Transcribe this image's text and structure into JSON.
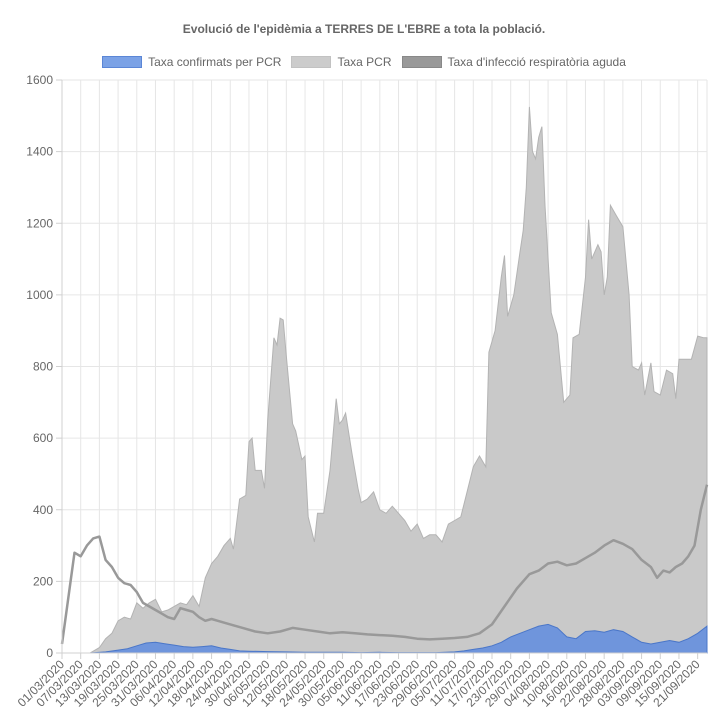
{
  "chart_data": {
    "type": "area",
    "title": "Evolució de l'epidèmia a TERRES DE L'EBRE a tota la població.",
    "ylim": [
      0,
      1600
    ],
    "yticks": [
      0,
      200,
      400,
      600,
      800,
      1000,
      1200,
      1400,
      1600
    ],
    "x_start": "01/03/2020",
    "x_end": "24/09/2020",
    "x_tick_labels": [
      "01/03/2020",
      "07/03/2020",
      "13/03/2020",
      "19/03/2020",
      "25/03/2020",
      "31/03/2020",
      "06/04/2020",
      "12/04/2020",
      "18/04/2020",
      "24/04/2020",
      "30/04/2020",
      "06/05/2020",
      "12/05/2020",
      "18/05/2020",
      "24/05/2020",
      "30/05/2020",
      "05/06/2020",
      "11/06/2020",
      "17/06/2020",
      "23/06/2020",
      "29/06/2020",
      "05/07/2020",
      "11/07/2020",
      "17/07/2020",
      "23/07/2020",
      "29/07/2020",
      "04/08/2020",
      "10/08/2020",
      "16/08/2020",
      "22/08/2020",
      "28/08/2020",
      "03/09/2020",
      "09/09/2020",
      "15/09/2020",
      "21/09/2020"
    ],
    "grid": true,
    "legend_position": "top",
    "series": [
      {
        "name": "Taxa confirmats per PCR",
        "color": "#5b86d6",
        "points": [
          [
            "01/03/2020",
            0
          ],
          [
            "10/03/2020",
            0
          ],
          [
            "15/03/2020",
            3
          ],
          [
            "19/03/2020",
            8
          ],
          [
            "22/03/2020",
            12
          ],
          [
            "25/03/2020",
            20
          ],
          [
            "28/03/2020",
            28
          ],
          [
            "31/03/2020",
            30
          ],
          [
            "03/04/2020",
            26
          ],
          [
            "06/04/2020",
            22
          ],
          [
            "09/04/2020",
            18
          ],
          [
            "12/04/2020",
            16
          ],
          [
            "15/04/2020",
            18
          ],
          [
            "18/04/2020",
            20
          ],
          [
            "21/04/2020",
            14
          ],
          [
            "24/04/2020",
            10
          ],
          [
            "27/04/2020",
            6
          ],
          [
            "30/04/2020",
            5
          ],
          [
            "06/05/2020",
            4
          ],
          [
            "12/05/2020",
            3
          ],
          [
            "18/05/2020",
            2
          ],
          [
            "24/05/2020",
            2
          ],
          [
            "30/05/2020",
            2
          ],
          [
            "05/06/2020",
            1
          ],
          [
            "11/06/2020",
            2
          ],
          [
            "17/06/2020",
            1
          ],
          [
            "23/06/2020",
            1
          ],
          [
            "29/06/2020",
            1
          ],
          [
            "02/07/2020",
            2
          ],
          [
            "05/07/2020",
            3
          ],
          [
            "08/07/2020",
            6
          ],
          [
            "11/07/2020",
            10
          ],
          [
            "14/07/2020",
            14
          ],
          [
            "17/07/2020",
            20
          ],
          [
            "20/07/2020",
            30
          ],
          [
            "23/07/2020",
            45
          ],
          [
            "26/07/2020",
            55
          ],
          [
            "29/07/2020",
            65
          ],
          [
            "01/08/2020",
            75
          ],
          [
            "04/08/2020",
            80
          ],
          [
            "07/08/2020",
            70
          ],
          [
            "10/08/2020",
            45
          ],
          [
            "13/08/2020",
            40
          ],
          [
            "16/08/2020",
            60
          ],
          [
            "19/08/2020",
            62
          ],
          [
            "22/08/2020",
            58
          ],
          [
            "25/08/2020",
            65
          ],
          [
            "28/08/2020",
            60
          ],
          [
            "31/08/2020",
            45
          ],
          [
            "03/09/2020",
            30
          ],
          [
            "06/09/2020",
            25
          ],
          [
            "09/09/2020",
            30
          ],
          [
            "12/09/2020",
            35
          ],
          [
            "15/09/2020",
            30
          ],
          [
            "18/09/2020",
            40
          ],
          [
            "21/09/2020",
            55
          ],
          [
            "24/09/2020",
            75
          ]
        ]
      },
      {
        "name": "Taxa PCR",
        "color": "#c9c9c9",
        "points": [
          [
            "01/03/2020",
            0
          ],
          [
            "10/03/2020",
            0
          ],
          [
            "13/03/2020",
            15
          ],
          [
            "15/03/2020",
            40
          ],
          [
            "17/03/2020",
            55
          ],
          [
            "19/03/2020",
            90
          ],
          [
            "21/03/2020",
            100
          ],
          [
            "23/03/2020",
            95
          ],
          [
            "25/03/2020",
            140
          ],
          [
            "27/03/2020",
            125
          ],
          [
            "29/03/2020",
            140
          ],
          [
            "31/03/2020",
            150
          ],
          [
            "02/04/2020",
            115
          ],
          [
            "04/04/2020",
            120
          ],
          [
            "06/04/2020",
            130
          ],
          [
            "08/04/2020",
            140
          ],
          [
            "10/04/2020",
            135
          ],
          [
            "12/04/2020",
            160
          ],
          [
            "14/04/2020",
            130
          ],
          [
            "16/04/2020",
            210
          ],
          [
            "18/04/2020",
            250
          ],
          [
            "20/04/2020",
            270
          ],
          [
            "22/04/2020",
            300
          ],
          [
            "24/04/2020",
            320
          ],
          [
            "25/04/2020",
            290
          ],
          [
            "27/04/2020",
            430
          ],
          [
            "29/04/2020",
            440
          ],
          [
            "30/04/2020",
            590
          ],
          [
            "01/05/2020",
            600
          ],
          [
            "02/05/2020",
            510
          ],
          [
            "04/05/2020",
            510
          ],
          [
            "05/05/2020",
            460
          ],
          [
            "06/05/2020",
            650
          ],
          [
            "08/05/2020",
            880
          ],
          [
            "09/05/2020",
            860
          ],
          [
            "10/05/2020",
            935
          ],
          [
            "11/05/2020",
            930
          ],
          [
            "12/05/2020",
            830
          ],
          [
            "14/05/2020",
            640
          ],
          [
            "15/05/2020",
            620
          ],
          [
            "17/05/2020",
            540
          ],
          [
            "18/05/2020",
            550
          ],
          [
            "19/05/2020",
            380
          ],
          [
            "21/05/2020",
            310
          ],
          [
            "22/05/2020",
            390
          ],
          [
            "24/05/2020",
            390
          ],
          [
            "26/05/2020",
            510
          ],
          [
            "27/05/2020",
            610
          ],
          [
            "28/05/2020",
            710
          ],
          [
            "29/05/2020",
            640
          ],
          [
            "30/05/2020",
            650
          ],
          [
            "31/05/2020",
            670
          ],
          [
            "02/06/2020",
            560
          ],
          [
            "04/06/2020",
            460
          ],
          [
            "05/06/2020",
            420
          ],
          [
            "07/06/2020",
            430
          ],
          [
            "09/06/2020",
            450
          ],
          [
            "11/06/2020",
            400
          ],
          [
            "13/06/2020",
            390
          ],
          [
            "15/06/2020",
            410
          ],
          [
            "17/06/2020",
            390
          ],
          [
            "19/06/2020",
            370
          ],
          [
            "21/06/2020",
            340
          ],
          [
            "23/06/2020",
            360
          ],
          [
            "25/06/2020",
            320
          ],
          [
            "27/06/2020",
            330
          ],
          [
            "29/06/2020",
            330
          ],
          [
            "01/07/2020",
            310
          ],
          [
            "03/07/2020",
            360
          ],
          [
            "05/07/2020",
            370
          ],
          [
            "07/07/2020",
            380
          ],
          [
            "09/07/2020",
            450
          ],
          [
            "11/07/2020",
            520
          ],
          [
            "13/07/2020",
            550
          ],
          [
            "15/07/2020",
            520
          ],
          [
            "16/07/2020",
            840
          ],
          [
            "18/07/2020",
            900
          ],
          [
            "20/07/2020",
            1050
          ],
          [
            "21/07/2020",
            1110
          ],
          [
            "22/07/2020",
            940
          ],
          [
            "24/07/2020",
            1000
          ],
          [
            "26/07/2020",
            1120
          ],
          [
            "27/07/2020",
            1180
          ],
          [
            "28/07/2020",
            1300
          ],
          [
            "29/07/2020",
            1525
          ],
          [
            "30/07/2020",
            1400
          ],
          [
            "31/07/2020",
            1380
          ],
          [
            "01/08/2020",
            1440
          ],
          [
            "02/08/2020",
            1470
          ],
          [
            "03/08/2020",
            1250
          ],
          [
            "05/08/2020",
            950
          ],
          [
            "07/08/2020",
            890
          ],
          [
            "09/08/2020",
            700
          ],
          [
            "11/08/2020",
            720
          ],
          [
            "12/08/2020",
            880
          ],
          [
            "14/08/2020",
            890
          ],
          [
            "16/08/2020",
            1050
          ],
          [
            "17/08/2020",
            1210
          ],
          [
            "18/08/2020",
            1100
          ],
          [
            "19/08/2020",
            1120
          ],
          [
            "20/08/2020",
            1140
          ],
          [
            "21/08/2020",
            1120
          ],
          [
            "22/08/2020",
            1000
          ],
          [
            "23/08/2020",
            1050
          ],
          [
            "24/08/2020",
            1250
          ],
          [
            "26/08/2020",
            1220
          ],
          [
            "28/08/2020",
            1190
          ],
          [
            "30/08/2020",
            1000
          ],
          [
            "31/08/2020",
            800
          ],
          [
            "02/09/2020",
            790
          ],
          [
            "03/09/2020",
            810
          ],
          [
            "04/09/2020",
            720
          ],
          [
            "06/09/2020",
            810
          ],
          [
            "07/09/2020",
            730
          ],
          [
            "09/09/2020",
            720
          ],
          [
            "11/09/2020",
            790
          ],
          [
            "13/09/2020",
            780
          ],
          [
            "14/09/2020",
            710
          ],
          [
            "15/09/2020",
            820
          ],
          [
            "17/09/2020",
            820
          ],
          [
            "19/09/2020",
            820
          ],
          [
            "21/09/2020",
            885
          ],
          [
            "23/09/2020",
            880
          ],
          [
            "24/09/2020",
            880
          ]
        ]
      },
      {
        "name": "Taxa d'infecció respiratòria aguda",
        "color": "#999999",
        "points": [
          [
            "01/03/2020",
            25
          ],
          [
            "05/03/2020",
            280
          ],
          [
            "07/03/2020",
            270
          ],
          [
            "09/03/2020",
            300
          ],
          [
            "11/03/2020",
            320
          ],
          [
            "13/03/2020",
            325
          ],
          [
            "15/03/2020",
            260
          ],
          [
            "17/03/2020",
            240
          ],
          [
            "19/03/2020",
            210
          ],
          [
            "21/03/2020",
            195
          ],
          [
            "23/03/2020",
            190
          ],
          [
            "25/03/2020",
            170
          ],
          [
            "27/03/2020",
            140
          ],
          [
            "29/03/2020",
            130
          ],
          [
            "31/03/2020",
            120
          ],
          [
            "02/04/2020",
            110
          ],
          [
            "04/04/2020",
            100
          ],
          [
            "06/04/2020",
            95
          ],
          [
            "08/04/2020",
            125
          ],
          [
            "10/04/2020",
            120
          ],
          [
            "12/04/2020",
            115
          ],
          [
            "14/04/2020",
            100
          ],
          [
            "16/04/2020",
            90
          ],
          [
            "18/04/2020",
            95
          ],
          [
            "20/04/2020",
            90
          ],
          [
            "24/04/2020",
            80
          ],
          [
            "28/04/2020",
            70
          ],
          [
            "02/05/2020",
            60
          ],
          [
            "06/05/2020",
            55
          ],
          [
            "10/05/2020",
            60
          ],
          [
            "14/05/2020",
            70
          ],
          [
            "18/05/2020",
            65
          ],
          [
            "22/05/2020",
            60
          ],
          [
            "26/05/2020",
            55
          ],
          [
            "30/05/2020",
            58
          ],
          [
            "03/06/2020",
            55
          ],
          [
            "07/06/2020",
            52
          ],
          [
            "11/06/2020",
            50
          ],
          [
            "15/06/2020",
            48
          ],
          [
            "19/06/2020",
            45
          ],
          [
            "23/06/2020",
            40
          ],
          [
            "27/06/2020",
            38
          ],
          [
            "01/07/2020",
            40
          ],
          [
            "05/07/2020",
            42
          ],
          [
            "09/07/2020",
            45
          ],
          [
            "13/07/2020",
            55
          ],
          [
            "17/07/2020",
            80
          ],
          [
            "21/07/2020",
            130
          ],
          [
            "25/07/2020",
            180
          ],
          [
            "29/07/2020",
            220
          ],
          [
            "01/08/2020",
            230
          ],
          [
            "04/08/2020",
            250
          ],
          [
            "07/08/2020",
            255
          ],
          [
            "10/08/2020",
            245
          ],
          [
            "13/08/2020",
            250
          ],
          [
            "16/08/2020",
            265
          ],
          [
            "19/08/2020",
            280
          ],
          [
            "22/08/2020",
            300
          ],
          [
            "25/08/2020",
            315
          ],
          [
            "28/08/2020",
            305
          ],
          [
            "31/08/2020",
            290
          ],
          [
            "03/09/2020",
            260
          ],
          [
            "06/09/2020",
            240
          ],
          [
            "08/09/2020",
            210
          ],
          [
            "10/09/2020",
            230
          ],
          [
            "12/09/2020",
            225
          ],
          [
            "14/09/2020",
            240
          ],
          [
            "16/09/2020",
            250
          ],
          [
            "18/09/2020",
            270
          ],
          [
            "20/09/2020",
            300
          ],
          [
            "22/09/2020",
            400
          ],
          [
            "24/09/2020",
            470
          ]
        ]
      }
    ]
  }
}
